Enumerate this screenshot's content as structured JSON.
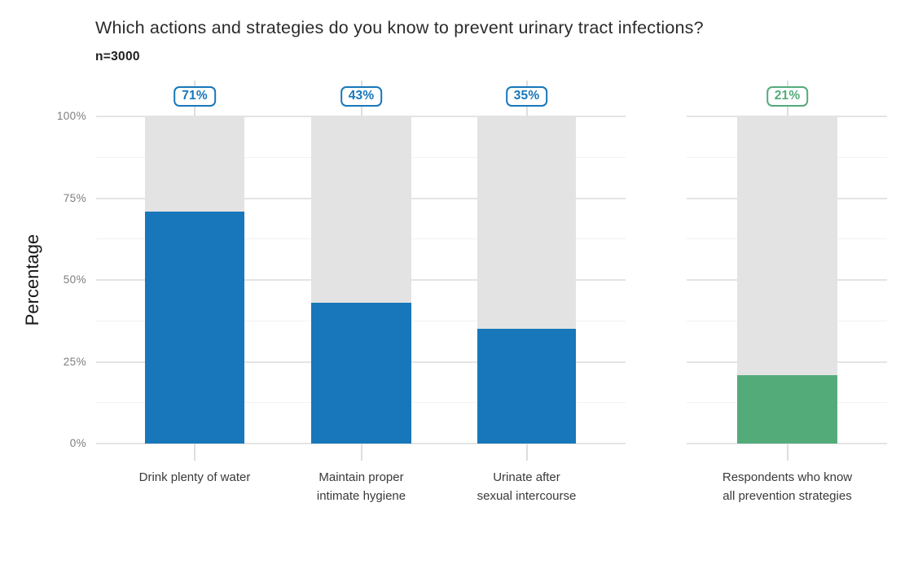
{
  "header": {
    "title": "Which actions and strategies do you know to prevent urinary tract infections?",
    "sample_size": "n=3000"
  },
  "chart_data": {
    "type": "bar",
    "title": "Which actions and strategies do you know to prevent urinary tract infections?",
    "subtitle": "n=3000",
    "ylabel": "Percentage",
    "ylim": [
      0,
      100
    ],
    "ytick_values": [
      0,
      25,
      50,
      75,
      100
    ],
    "ytick_labels": [
      "0%",
      "25%",
      "50%",
      "75%",
      "100%"
    ],
    "minor_gridlines": [
      12.5,
      37.5,
      62.5,
      87.5
    ],
    "grid": true,
    "legend": "none",
    "categories": [
      "Drink plenty of water",
      "Maintain proper\nintimate hygiene",
      "Urinate after\nsexual intercourse",
      "Respondents who know\nall prevention strategies"
    ],
    "values": [
      71,
      43,
      35,
      21
    ],
    "value_labels": [
      "71%",
      "43%",
      "35%",
      "21%"
    ],
    "bar_colors": [
      "#1777ba",
      "#1777ba",
      "#1777ba",
      "#54ab7a"
    ],
    "track_color": "#e3e3e3",
    "track_max": 100,
    "panel_groups": [
      [
        0,
        1,
        2
      ],
      [
        3
      ]
    ]
  },
  "colors": {
    "blue": "#1777ba",
    "green": "#54ab7a",
    "track_gray": "#e3e3e3",
    "grid_major": "#e4e4e4",
    "grid_minor": "#f2f2f2",
    "tick_mark": "#dedede",
    "axis_text": "#7d7d7d",
    "category_text": "#3a3a3a",
    "title_text": "#2b2b2b"
  }
}
